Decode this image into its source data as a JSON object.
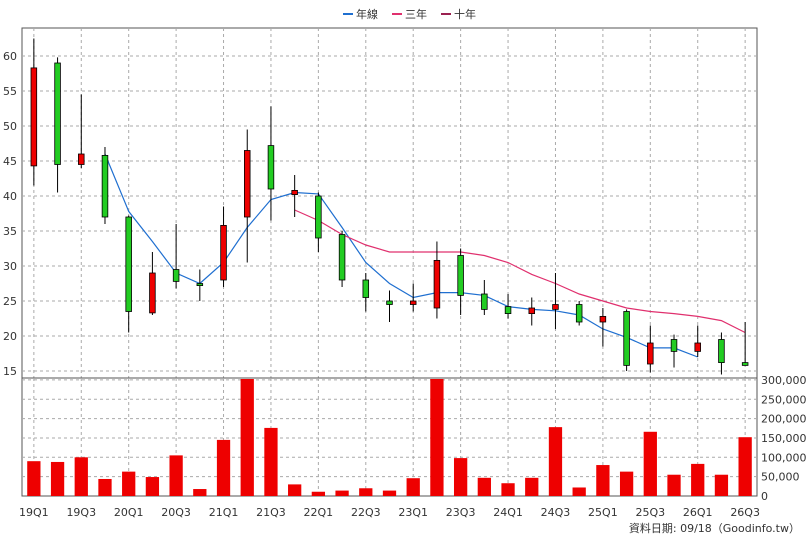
{
  "chart_data": {
    "type": "candlestick",
    "legend": {
      "placement": "top-center",
      "items": [
        {
          "label": "年線",
          "color": "#1f6fd0"
        },
        {
          "label": "三年",
          "color": "#e0306e"
        },
        {
          "label": "十年",
          "color": "#9b2050"
        }
      ]
    },
    "price_axis": {
      "ticks": [
        15,
        20,
        25,
        30,
        35,
        40,
        45,
        50,
        55,
        60
      ],
      "ylim": [
        14,
        64
      ]
    },
    "volume_axis": {
      "ticks": [
        "0",
        "50,000",
        "100,000",
        "150,000",
        "200,000",
        "250,000",
        "300,000"
      ],
      "ylim": [
        0,
        305000
      ]
    },
    "x_tick_labels": [
      "19Q1",
      "19Q3",
      "20Q1",
      "20Q3",
      "21Q1",
      "21Q3",
      "22Q1",
      "22Q3",
      "23Q1",
      "23Q3",
      "24Q1",
      "24Q3",
      "25Q1",
      "25Q3",
      "26Q1",
      "26Q3"
    ],
    "quarters": [
      "19Q1",
      "19Q2",
      "19Q3",
      "19Q4",
      "20Q1",
      "20Q2",
      "20Q3",
      "20Q4",
      "21Q1",
      "21Q2",
      "21Q3",
      "21Q4",
      "22Q1",
      "22Q2",
      "22Q3",
      "22Q4",
      "23Q1",
      "23Q2",
      "23Q3",
      "23Q4",
      "24Q1",
      "24Q2",
      "24Q3",
      "24Q4",
      "25Q1",
      "25Q2",
      "25Q3",
      "25Q4",
      "26Q1",
      "26Q2",
      "26Q3"
    ],
    "ohlc": [
      {
        "o": 44.3,
        "h": 62.5,
        "l": 41.5,
        "c": 58.3
      },
      {
        "o": 59.0,
        "h": 59.8,
        "l": 40.5,
        "c": 44.5
      },
      {
        "o": 44.5,
        "h": 54.5,
        "l": 44.0,
        "c": 46.0
      },
      {
        "o": 45.8,
        "h": 47.0,
        "l": 36.0,
        "c": 37.0
      },
      {
        "o": 37.0,
        "h": 37.2,
        "l": 20.5,
        "c": 23.5
      },
      {
        "o": 23.3,
        "h": 32.0,
        "l": 23.0,
        "c": 29.0
      },
      {
        "o": 29.5,
        "h": 36.0,
        "l": 26.8,
        "c": 27.8
      },
      {
        "o": 27.5,
        "h": 29.5,
        "l": 25.0,
        "c": 27.2
      },
      {
        "o": 28.0,
        "h": 38.5,
        "l": 27.0,
        "c": 35.8
      },
      {
        "o": 37.0,
        "h": 49.5,
        "l": 30.5,
        "c": 46.5
      },
      {
        "o": 47.2,
        "h": 52.8,
        "l": 36.5,
        "c": 41.0
      },
      {
        "o": 40.2,
        "h": 43.0,
        "l": 37.0,
        "c": 40.8
      },
      {
        "o": 40.0,
        "h": 40.5,
        "l": 32.0,
        "c": 34.0
      },
      {
        "o": 34.5,
        "h": 35.0,
        "l": 27.0,
        "c": 28.0
      },
      {
        "o": 28.0,
        "h": 29.0,
        "l": 23.5,
        "c": 25.5
      },
      {
        "o": 25.0,
        "h": 26.5,
        "l": 22.0,
        "c": 24.5
      },
      {
        "o": 24.5,
        "h": 27.5,
        "l": 23.5,
        "c": 25.0
      },
      {
        "o": 24.0,
        "h": 33.5,
        "l": 22.5,
        "c": 30.8
      },
      {
        "o": 31.5,
        "h": 32.5,
        "l": 23.0,
        "c": 25.8
      },
      {
        "o": 26.0,
        "h": 28.0,
        "l": 23.0,
        "c": 23.8
      },
      {
        "o": 24.2,
        "h": 26.0,
        "l": 22.5,
        "c": 23.2
      },
      {
        "o": 23.2,
        "h": 25.5,
        "l": 21.5,
        "c": 24.0
      },
      {
        "o": 23.8,
        "h": 29.0,
        "l": 21.0,
        "c": 24.5
      },
      {
        "o": 24.5,
        "h": 25.0,
        "l": 21.5,
        "c": 22.0
      },
      {
        "o": 22.0,
        "h": 24.0,
        "l": 18.5,
        "c": 22.8
      },
      {
        "o": 23.5,
        "h": 23.8,
        "l": 15.0,
        "c": 15.8
      },
      {
        "o": 16.0,
        "h": 21.5,
        "l": 14.8,
        "c": 19.0
      },
      {
        "o": 19.5,
        "h": 20.2,
        "l": 15.5,
        "c": 17.8
      },
      {
        "o": 17.8,
        "h": 21.5,
        "l": 17.0,
        "c": 19.0
      },
      {
        "o": 19.5,
        "h": 20.5,
        "l": 14.5,
        "c": 16.2
      },
      {
        "o": 16.2,
        "h": 22.0,
        "l": 15.8,
        "c": 15.8
      }
    ],
    "volume": [
      90000,
      88000,
      100000,
      44000,
      63000,
      49000,
      105000,
      18000,
      145000,
      310000,
      176000,
      30000,
      11000,
      14000,
      20000,
      14000,
      46000,
      305000,
      98000,
      47000,
      33000,
      47000,
      178000,
      22000,
      80000,
      63000,
      166000,
      55000,
      83000,
      55000,
      152000
    ],
    "lines": [
      {
        "name": "年線",
        "color": "#1f6fd0",
        "start": 3,
        "values": [
          46.0,
          37.8,
          33.5,
          29.0,
          27.5,
          30.5,
          35.5,
          39.5,
          40.5,
          40.3,
          35.5,
          30.5,
          27.5,
          25.5,
          26.2,
          26.2,
          25.8,
          24.2,
          23.8,
          23.6,
          23.0,
          21.0,
          19.8,
          18.3,
          18.3,
          17.0
        ]
      },
      {
        "name": "三年",
        "color": "#e0306e",
        "start": 11,
        "values": [
          38.0,
          36.5,
          34.5,
          33.0,
          32.0,
          32.0,
          32.0,
          32.0,
          31.5,
          30.5,
          28.8,
          27.5,
          26.0,
          25.0,
          24.0,
          23.5,
          23.2,
          22.8,
          22.2,
          20.5
        ]
      }
    ],
    "footer": "資料日期: 09/18（Goodinfo.tw）"
  }
}
